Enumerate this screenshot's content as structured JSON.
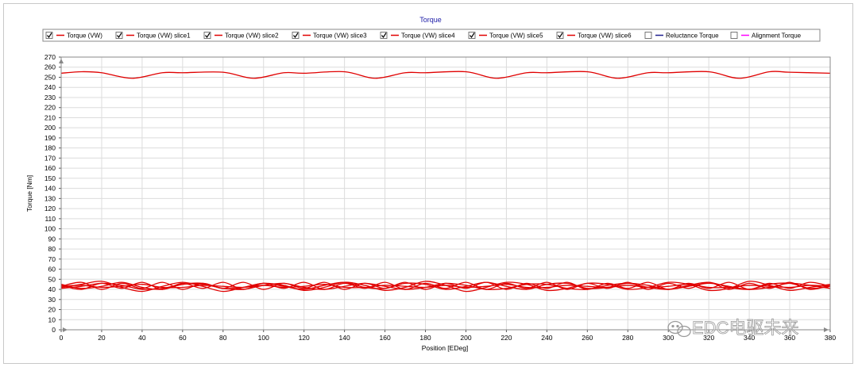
{
  "chart_data": {
    "type": "line",
    "title": "Torque",
    "xlabel": "Position [EDeg]",
    "ylabel": "Torque [Nm]",
    "xlim": [
      0,
      380
    ],
    "ylim": [
      0,
      270
    ],
    "x_ticks": [
      0,
      20,
      40,
      60,
      80,
      100,
      120,
      140,
      160,
      180,
      200,
      220,
      240,
      260,
      280,
      300,
      320,
      340,
      360,
      380
    ],
    "y_ticks": [
      0,
      10,
      20,
      30,
      40,
      50,
      60,
      70,
      80,
      90,
      100,
      110,
      120,
      130,
      140,
      150,
      160,
      170,
      180,
      190,
      200,
      210,
      220,
      230,
      240,
      250,
      260,
      270
    ],
    "grid": true,
    "legend_position": "top",
    "colors": {
      "torque": "#e00000",
      "reluctance": "#1f1f8f",
      "alignment": "#ff00ff",
      "title": "#1a1aa6"
    },
    "legend": [
      {
        "label": "Torque (VW)",
        "checked": true,
        "color": "#e00000"
      },
      {
        "label": "Torque (VW) slice1",
        "checked": true,
        "color": "#e00000"
      },
      {
        "label": "Torque (VW) slice2",
        "checked": true,
        "color": "#e00000"
      },
      {
        "label": "Torque (VW) slice3",
        "checked": true,
        "color": "#e00000"
      },
      {
        "label": "Torque (VW) slice4",
        "checked": true,
        "color": "#e00000"
      },
      {
        "label": "Torque (VW) slice5",
        "checked": true,
        "color": "#e00000"
      },
      {
        "label": "Torque (VW) slice6",
        "checked": true,
        "color": "#e00000"
      },
      {
        "label": "Reluctance Torque",
        "checked": false,
        "color": "#1f1f8f"
      },
      {
        "label": "Alignment Torque",
        "checked": false,
        "color": "#ff00ff"
      }
    ],
    "series": [
      {
        "name": "Torque (VW)",
        "x": [
          0,
          10,
          20,
          35,
          50,
          60,
          80,
          95,
          110,
          120,
          140,
          155,
          170,
          180,
          200,
          215,
          230,
          240,
          260,
          275,
          290,
          300,
          320,
          335,
          350,
          360,
          380
        ],
        "y": [
          254,
          255.5,
          254.5,
          249,
          254.5,
          254.5,
          255,
          249,
          254.5,
          254,
          255.5,
          249,
          254.5,
          254.5,
          255.5,
          249,
          254.5,
          254.5,
          255.5,
          249,
          254.5,
          254.5,
          255.5,
          249,
          255.5,
          255,
          254
        ]
      },
      {
        "name": "Torque (VW) slice1",
        "x": [
          0,
          10,
          20,
          30,
          40,
          50,
          60,
          70,
          80,
          90,
          100,
          110,
          120,
          130,
          140,
          150,
          160,
          170,
          180,
          190,
          200,
          210,
          220,
          230,
          240,
          250,
          260,
          270,
          280,
          290,
          300,
          310,
          320,
          330,
          340,
          350,
          360,
          370,
          380
        ],
        "y": [
          43,
          47,
          40,
          46,
          41,
          47,
          40,
          46,
          41,
          47,
          40,
          46,
          41,
          47,
          40,
          46,
          41,
          47,
          40,
          46,
          41,
          47,
          40,
          46,
          41,
          47,
          40,
          46,
          41,
          47,
          40,
          46,
          41,
          47,
          40,
          46,
          41,
          47,
          43
        ]
      },
      {
        "name": "Torque (VW) slice2",
        "x": [
          0,
          10,
          20,
          30,
          40,
          50,
          60,
          70,
          80,
          90,
          100,
          110,
          120,
          130,
          140,
          150,
          160,
          170,
          180,
          190,
          200,
          210,
          220,
          230,
          240,
          250,
          260,
          270,
          280,
          290,
          300,
          310,
          320,
          330,
          340,
          350,
          360,
          370,
          380
        ],
        "y": [
          44,
          40,
          46,
          41,
          47,
          40,
          46,
          41,
          47,
          40,
          46,
          41,
          47,
          40,
          46,
          41,
          47,
          40,
          46,
          41,
          47,
          40,
          46,
          41,
          47,
          40,
          46,
          41,
          47,
          40,
          46,
          41,
          47,
          40,
          46,
          41,
          47,
          40,
          44
        ]
      },
      {
        "name": "Torque (VW) slice3",
        "x": [
          0,
          10,
          20,
          30,
          40,
          50,
          60,
          70,
          80,
          90,
          100,
          110,
          120,
          130,
          140,
          150,
          160,
          170,
          180,
          190,
          200,
          210,
          220,
          230,
          240,
          250,
          260,
          270,
          280,
          290,
          300,
          310,
          320,
          330,
          340,
          350,
          360,
          370,
          380
        ],
        "y": [
          42,
          45,
          48,
          42,
          38,
          43,
          47,
          43,
          38,
          42,
          46,
          44,
          39,
          42,
          47,
          44,
          39,
          42,
          48,
          44,
          38,
          42,
          47,
          45,
          39,
          41,
          46,
          45,
          40,
          42,
          47,
          45,
          39,
          41,
          48,
          44,
          39,
          42,
          45
        ]
      },
      {
        "name": "Torque (VW) slice4",
        "x": [
          0,
          10,
          20,
          30,
          40,
          50,
          60,
          70,
          80,
          90,
          100,
          110,
          120,
          130,
          140,
          150,
          160,
          170,
          180,
          190,
          200,
          210,
          220,
          230,
          240,
          250,
          260,
          270,
          280,
          290,
          300,
          310,
          320,
          330,
          340,
          350,
          360,
          370,
          380
        ],
        "y": [
          45,
          41,
          43,
          47,
          42,
          40,
          45,
          46,
          41,
          42,
          46,
          43,
          40,
          44,
          47,
          42,
          41,
          46,
          45,
          40,
          43,
          47,
          43,
          40,
          45,
          46,
          41,
          42,
          46,
          44,
          40,
          44,
          47,
          42,
          40,
          45,
          46,
          41,
          43
        ]
      },
      {
        "name": "Torque (VW) slice5",
        "x": [
          0,
          10,
          20,
          30,
          40,
          50,
          60,
          70,
          80,
          90,
          100,
          110,
          120,
          130,
          140,
          150,
          160,
          170,
          180,
          190,
          200,
          210,
          220,
          230,
          240,
          250,
          260,
          270,
          280,
          290,
          300,
          310,
          320,
          330,
          340,
          350,
          360,
          370,
          380
        ],
        "y": [
          43,
          44,
          42,
          43,
          45,
          42,
          42,
          44,
          43,
          42,
          44,
          42,
          43,
          45,
          42,
          42,
          44,
          43,
          42,
          44,
          42,
          43,
          45,
          42,
          42,
          44,
          43,
          42,
          44,
          42,
          43,
          45,
          42,
          42,
          44,
          43,
          42,
          44,
          43
        ]
      },
      {
        "name": "Torque (VW) slice6",
        "x": [
          0,
          10,
          20,
          30,
          40,
          50,
          60,
          70,
          80,
          90,
          100,
          110,
          120,
          130,
          140,
          150,
          160,
          170,
          180,
          190,
          200,
          210,
          220,
          230,
          240,
          250,
          260,
          270,
          280,
          290,
          300,
          310,
          320,
          330,
          340,
          350,
          360,
          370,
          380
        ],
        "y": [
          41,
          43,
          46,
          44,
          40,
          41,
          45,
          45,
          41,
          40,
          44,
          46,
          42,
          40,
          43,
          46,
          43,
          40,
          42,
          46,
          44,
          40,
          41,
          45,
          45,
          41,
          40,
          44,
          46,
          42,
          40,
          43,
          46,
          43,
          40,
          42,
          46,
          44,
          41
        ]
      }
    ]
  },
  "watermark": "EDC电驱未来"
}
